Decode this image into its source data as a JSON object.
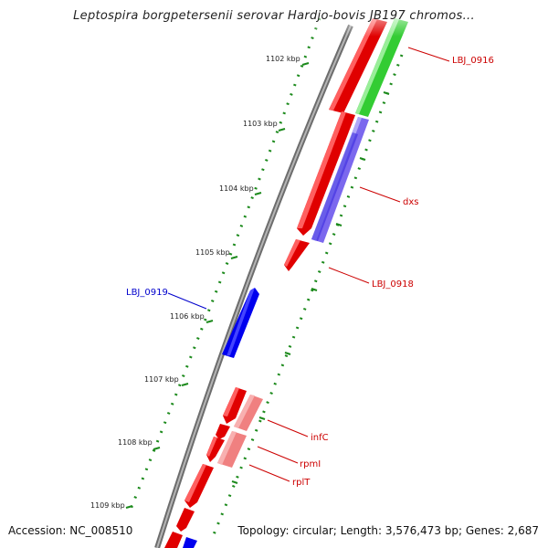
{
  "title": "Leptospira borgpetersenii serovar Hardjo-bovis JB197 chromos...",
  "footer": {
    "accession": "Accession: NC_008510",
    "topology": "Topology: circular; Length: 3,576,473 bp; Genes: 2,687"
  },
  "colors": {
    "backbone": "#808080",
    "forward": "#ff0000",
    "forward_light": "#f08080",
    "reverse": "#0000ff",
    "reverse_light": "#7b68ee",
    "green": "#33cc33",
    "ticks": "#007700",
    "label_red": "#cc0000",
    "label_blue": "#0000cc"
  },
  "ticks": [
    {
      "label": "1102 kbp"
    },
    {
      "label": "1103 kbp"
    },
    {
      "label": "1104 kbp"
    },
    {
      "label": "1105 kbp"
    },
    {
      "label": "1106 kbp"
    },
    {
      "label": "1107 kbp"
    },
    {
      "label": "1108 kbp"
    },
    {
      "label": "1109 kbp"
    }
  ],
  "gene_labels": [
    {
      "name": "LBJ_0916",
      "color": "#cc0000"
    },
    {
      "name": "dxs",
      "color": "#cc0000"
    },
    {
      "name": "LBJ_0918",
      "color": "#cc0000"
    },
    {
      "name": "LBJ_0919",
      "color": "#0000cc"
    },
    {
      "name": "infC",
      "color": "#cc0000"
    },
    {
      "name": "rpmI",
      "color": "#cc0000"
    },
    {
      "name": "rplT",
      "color": "#cc0000"
    }
  ]
}
